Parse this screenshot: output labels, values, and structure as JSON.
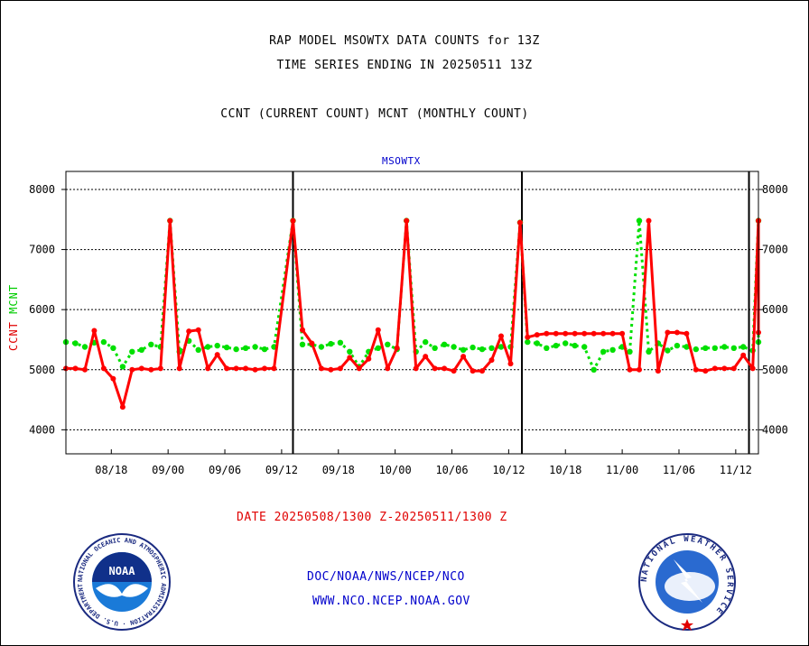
{
  "header": {
    "line1": "RAP MODEL MSOWTX DATA COUNTS for 13Z",
    "line2": "TIME SERIES ENDING IN 20250511 13Z",
    "line3": "CCNT (CURRENT COUNT) MCNT (MONTHLY COUNT)"
  },
  "footer": {
    "date_range": "DATE 20250508/1300 Z-20250511/1300 Z",
    "link1": "DOC/NOAA/NWS/NCEP/NCO",
    "link2": "WWW.NCO.NCEP.NOAA.GOV"
  },
  "logos": {
    "noaa": {
      "text": "NOAA",
      "ring_text": "NATIONAL OCEANIC AND ATMOSPHERIC ADMINISTRATION · U.S. DEPARTMENT OF COMMERCE"
    },
    "nws": {
      "ring_text": "NATIONAL WEATHER SERVICE"
    }
  },
  "colors": {
    "ccnt": "#ff0000",
    "mcnt": "#00e000",
    "station": "#0000cc"
  },
  "chart_data": {
    "type": "line",
    "title": "MSOWTX",
    "ylabel_parts": [
      "CCNT",
      "MCNT"
    ],
    "ylim": [
      3600,
      8300
    ],
    "yticks": [
      4000,
      5000,
      6000,
      7000,
      8000
    ],
    "grid": true,
    "x_tick_labels": [
      "08/18",
      "09/00",
      "09/06",
      "09/12",
      "09/18",
      "10/00",
      "10/06",
      "10/12",
      "10/18",
      "11/00",
      "11/06",
      "11/12"
    ],
    "x_tick_index": [
      2,
      5,
      8,
      11,
      14,
      17,
      20,
      23,
      26,
      29,
      32,
      35
    ],
    "x_range": [
      -0.4,
      36.2
    ],
    "day_boundaries": [
      11.6,
      23.7,
      35.7
    ],
    "series": [
      {
        "name": "CCNT",
        "color": "#ff0000",
        "values": [
          5020,
          5020,
          5000,
          5650,
          5020,
          4850,
          4380,
          5000,
          5020,
          5000,
          5020,
          7480,
          5020,
          5640,
          5660,
          5020,
          5250,
          5020,
          5020,
          5020,
          5000,
          5020,
          5020,
          7480,
          5660,
          5440,
          5020,
          5000,
          5020,
          5200,
          5020,
          5180,
          5660,
          5020,
          5360,
          7480,
          5020,
          5220,
          5020,
          5020,
          4980,
          5220,
          4980,
          4980,
          5160,
          5560,
          5100,
          7450,
          5540,
          5580,
          5600,
          5600,
          5600,
          5600,
          5600,
          5600,
          5600,
          5600,
          5600,
          5000,
          5000,
          7480,
          4980,
          5620,
          5620,
          5600,
          5000,
          4980,
          5020,
          5020,
          5020,
          5240,
          5020,
          7480,
          5620
        ],
        "x": [
          -0.4,
          0.1,
          0.6,
          1.1,
          1.6,
          2.1,
          2.6,
          3.1,
          3.6,
          4.1,
          4.6,
          5.1,
          5.6,
          6.1,
          6.6,
          7.1,
          7.6,
          8.1,
          8.6,
          9.1,
          9.6,
          10.1,
          10.6,
          11.6,
          12.1,
          12.6,
          13.1,
          13.6,
          14.1,
          14.6,
          15.1,
          15.6,
          16.1,
          16.6,
          17.1,
          17.6,
          18.1,
          18.6,
          19.1,
          19.6,
          20.1,
          20.6,
          21.1,
          21.6,
          22.1,
          22.6,
          23.1,
          23.6,
          24.0,
          24.5,
          25.0,
          25.5,
          26.0,
          26.5,
          27.0,
          27.5,
          28.0,
          28.5,
          29.0,
          29.4,
          29.9,
          30.4,
          30.9,
          31.4,
          31.9,
          32.4,
          32.9,
          33.4,
          33.9,
          34.4,
          34.9,
          35.4,
          35.9,
          36.2,
          36.2
        ]
      },
      {
        "name": "MCNT",
        "color": "#00e000",
        "values": [
          5460,
          5440,
          5380,
          5450,
          5460,
          5360,
          5050,
          5300,
          5330,
          5420,
          5380,
          7480,
          5300,
          5480,
          5330,
          5380,
          5400,
          5370,
          5340,
          5360,
          5380,
          5340,
          5380,
          7480,
          5420,
          5420,
          5380,
          5430,
          5450,
          5300,
          5050,
          5300,
          5360,
          5420,
          5340,
          7480,
          5300,
          5460,
          5360,
          5420,
          5380,
          5330,
          5370,
          5340,
          5360,
          5380,
          5380,
          7450,
          5460,
          5440,
          5360,
          5400,
          5440,
          5400,
          5380,
          5000,
          5300,
          5330,
          5380,
          5300,
          7480,
          5300,
          5440,
          5320,
          5400,
          5380,
          5340,
          5360,
          5360,
          5380,
          5360,
          5380,
          5320,
          7480,
          5460
        ],
        "x": [
          -0.4,
          0.1,
          0.6,
          1.1,
          1.6,
          2.1,
          2.6,
          3.1,
          3.6,
          4.1,
          4.6,
          5.1,
          5.6,
          6.1,
          6.6,
          7.1,
          7.6,
          8.1,
          8.6,
          9.1,
          9.6,
          10.1,
          10.6,
          11.6,
          12.1,
          12.6,
          13.1,
          13.6,
          14.1,
          14.6,
          15.1,
          15.6,
          16.1,
          16.6,
          17.1,
          17.6,
          18.1,
          18.6,
          19.1,
          19.6,
          20.1,
          20.6,
          21.1,
          21.6,
          22.1,
          22.6,
          23.1,
          23.6,
          24.0,
          24.5,
          25.0,
          25.5,
          26.0,
          26.5,
          27.0,
          27.5,
          28.0,
          28.5,
          29.0,
          29.4,
          29.9,
          30.4,
          30.9,
          31.4,
          31.9,
          32.4,
          32.9,
          33.4,
          33.9,
          34.4,
          34.9,
          35.4,
          35.9,
          36.2,
          36.2
        ]
      }
    ]
  }
}
